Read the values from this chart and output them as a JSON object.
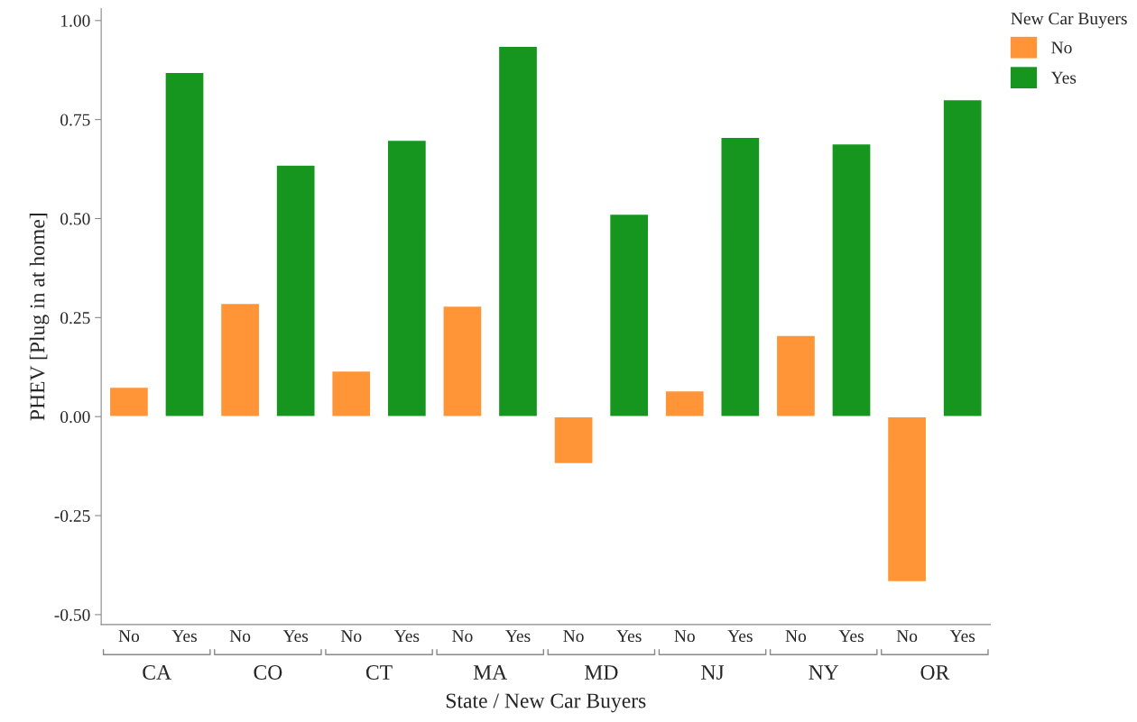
{
  "chart_data": {
    "type": "bar",
    "xlabel": "State / New Car Buyers",
    "ylabel": "PHEV [Plug in at home]",
    "legend_title": "New Car Buyers",
    "legend": "top right",
    "categories": [
      "CA",
      "CO",
      "CT",
      "MA",
      "MD",
      "NJ",
      "NY",
      "OR"
    ],
    "series": [
      {
        "name": "No",
        "color": "#ff9537",
        "values": [
          0.074,
          0.286,
          0.115,
          0.279,
          -0.119,
          0.065,
          0.205,
          -0.417
        ]
      },
      {
        "name": "Yes",
        "color": "#16961e",
        "values": [
          0.869,
          0.635,
          0.698,
          0.935,
          0.511,
          0.705,
          0.689,
          0.8
        ]
      }
    ],
    "ylim": [
      -0.525,
      1.03
    ],
    "yticks": [
      {
        "value": -0.5,
        "label": "-0.50"
      },
      {
        "value": -0.25,
        "label": "-0.25"
      },
      {
        "value": 0,
        "label": "0.00"
      },
      {
        "value": 0.25,
        "label": "0.25"
      },
      {
        "value": 0.5,
        "label": "0.50"
      },
      {
        "value": 0.75,
        "label": "0.75"
      },
      {
        "value": 1,
        "label": "1.00"
      }
    ],
    "grid": false
  }
}
